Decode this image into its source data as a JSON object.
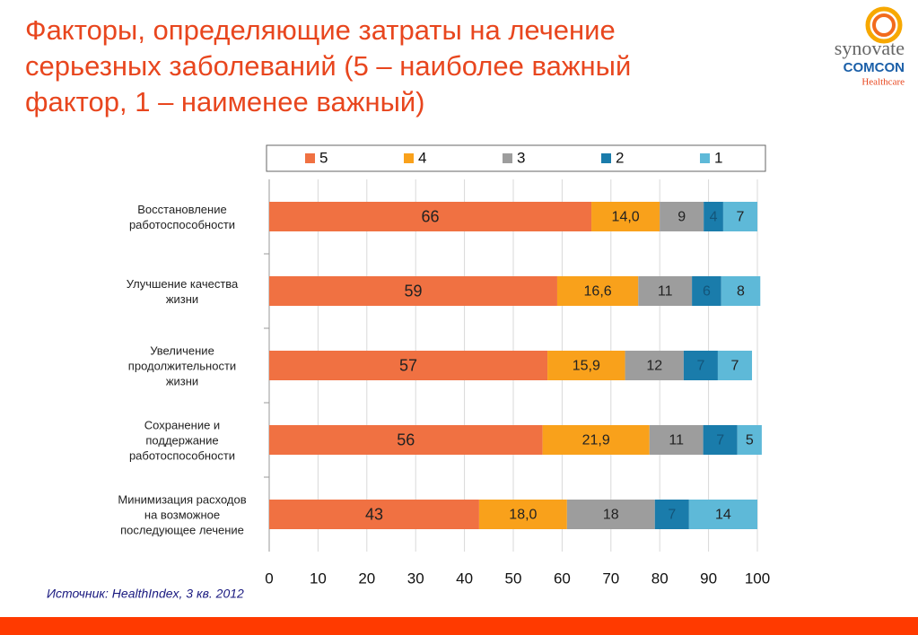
{
  "header": {
    "title": "Факторы, определяющие затраты на лечение\nсерьезных заболеваний (5 – наиболее важный\nфактор, 1 – наименее важный)",
    "logo": {
      "brand": "synovate",
      "sub": "COMCON",
      "unit": "Healthcare"
    }
  },
  "chart_data": {
    "type": "stacked-bar-horizontal",
    "categories": [
      "Восстановление\nработоспособности",
      "Улучшение качества\nжизни",
      "Увеличение\nпродолжительности\nжизни",
      "Сохранение и\nподдержание\nработоспособности",
      "Минимизация расходов\nна возможное\nпоследующее лечение"
    ],
    "series": [
      {
        "name": "5",
        "color": "#f07142",
        "values": [
          66,
          59,
          57,
          56,
          43
        ]
      },
      {
        "name": "4",
        "color": "#f9a11b",
        "values": [
          14.0,
          16.6,
          15.9,
          21.9,
          18.0
        ],
        "value_labels": [
          "14,0",
          "16,6",
          "15,9",
          "21,9",
          "18,0"
        ]
      },
      {
        "name": "3",
        "color": "#9d9d9d",
        "values": [
          9,
          11,
          12,
          11,
          18
        ]
      },
      {
        "name": "2",
        "color": "#1a7cab",
        "values": [
          4,
          6,
          7,
          7,
          7
        ]
      },
      {
        "name": "1",
        "color": "#5eb9d8",
        "values": [
          7,
          8,
          7,
          5,
          14
        ]
      }
    ],
    "xlim": [
      0,
      100
    ],
    "xticks": [
      0,
      10,
      20,
      30,
      40,
      50,
      60,
      70,
      80,
      90,
      100
    ],
    "grid": true,
    "legend": "top"
  },
  "footer": {
    "source": "Источник: HealthIndex, 3 кв.  2012"
  }
}
